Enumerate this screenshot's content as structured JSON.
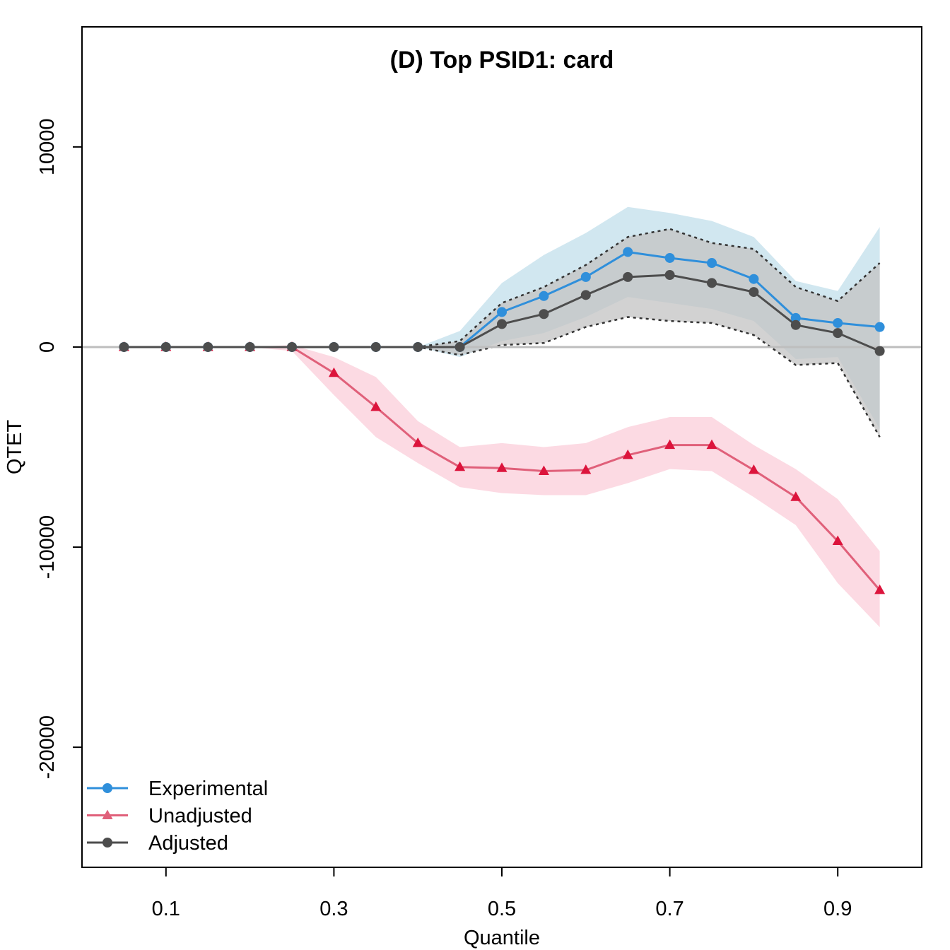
{
  "chart_data": {
    "type": "line",
    "title": "(D) Top PSID1: card",
    "xlabel": "Quantile",
    "ylabel": "QTET",
    "xlim": [
      0.0,
      1.0
    ],
    "ylim": [
      -26000,
      16000
    ],
    "x_ticks": [
      0.1,
      0.3,
      0.5,
      0.7,
      0.9
    ],
    "x_tick_labels": [
      "0.1",
      "0.3",
      "0.5",
      "0.7",
      "0.9"
    ],
    "y_ticks": [
      10000,
      0,
      -10000,
      -20000
    ],
    "y_tick_labels": [
      "10000",
      "0",
      "-10000",
      "-20000"
    ],
    "zero_line": true,
    "grid": false,
    "legend_position": "bottom-left",
    "x": [
      0.05,
      0.1,
      0.15,
      0.2,
      0.25,
      0.3,
      0.35,
      0.4,
      0.45,
      0.5,
      0.55,
      0.6,
      0.65,
      0.7,
      0.75,
      0.8,
      0.85,
      0.9,
      0.95
    ],
    "series": [
      {
        "name": "Experimental",
        "color": "#2F8FDB",
        "band_color": "#CCE4EE",
        "marker": "circle",
        "values": [
          0,
          0,
          0,
          0,
          0,
          0,
          0,
          0,
          0,
          1750,
          2550,
          3500,
          4750,
          4450,
          4200,
          3400,
          1450,
          1200,
          1000
        ],
        "lower": [
          0,
          0,
          0,
          0,
          0,
          0,
          0,
          0,
          -500,
          300,
          700,
          1500,
          2500,
          2200,
          1900,
          1300,
          -600,
          -500,
          -4100
        ],
        "upper": [
          0,
          0,
          0,
          0,
          0,
          0,
          0,
          0,
          800,
          3200,
          4600,
          5700,
          7000,
          6700,
          6300,
          5500,
          3300,
          2800,
          6000
        ]
      },
      {
        "name": "Unadjusted",
        "color": "#E0607A",
        "marker_color": "#DC143C",
        "band_color": "#FCD6E0",
        "marker": "triangle",
        "values": [
          0,
          0,
          0,
          0,
          0,
          -1300,
          -3000,
          -4800,
          -6000,
          -6050,
          -6200,
          -6150,
          -5400,
          -4900,
          -4900,
          -6150,
          -7500,
          -9700,
          -12150
        ],
        "lower": [
          0,
          0,
          0,
          0,
          -200,
          -2400,
          -4500,
          -5800,
          -7000,
          -7300,
          -7400,
          -7400,
          -6800,
          -6100,
          -6200,
          -7500,
          -8900,
          -11800,
          -14000
        ],
        "upper": [
          0,
          0,
          0,
          0,
          100,
          -500,
          -1500,
          -3700,
          -5000,
          -4800,
          -5000,
          -4800,
          -4000,
          -3500,
          -3500,
          -4900,
          -6100,
          -7600,
          -10200
        ]
      },
      {
        "name": "Adjusted",
        "color": "#4D4D4D",
        "band_color": "#C3C3C3",
        "marker": "circle",
        "values": [
          0,
          0,
          0,
          0,
          0,
          0,
          0,
          0,
          0,
          1150,
          1650,
          2600,
          3500,
          3600,
          3200,
          2750,
          1100,
          700,
          -200
        ],
        "lower": [
          0,
          0,
          0,
          0,
          0,
          0,
          0,
          0,
          -400,
          100,
          200,
          1000,
          1500,
          1300,
          1200,
          600,
          -900,
          -800,
          -4500
        ],
        "upper": [
          0,
          0,
          0,
          0,
          0,
          0,
          0,
          0,
          300,
          2200,
          3000,
          4100,
          5500,
          5900,
          5200,
          4900,
          3000,
          2300,
          4200
        ]
      }
    ]
  }
}
